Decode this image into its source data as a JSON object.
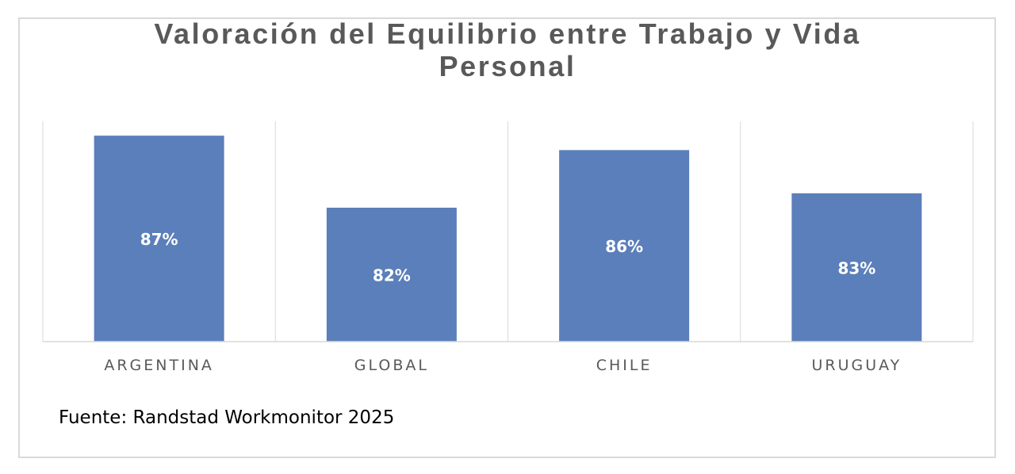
{
  "chart_data": {
    "type": "bar",
    "title": "Valoración del Equilibrio entre Trabajo y Vida Personal",
    "categories": [
      "ARGENTINA",
      "GLOBAL",
      "CHILE",
      "URUGUAY"
    ],
    "values": [
      87,
      82,
      86,
      83
    ],
    "data_labels": [
      "87%",
      "82%",
      "86%",
      "83%"
    ],
    "ylim": [
      72.7,
      88
    ],
    "grid": "vertical category separators",
    "legend": "none",
    "bar_color": "#5b7fba"
  },
  "footer": {
    "source": "Fuente: Randstad Workmonitor 2025"
  }
}
